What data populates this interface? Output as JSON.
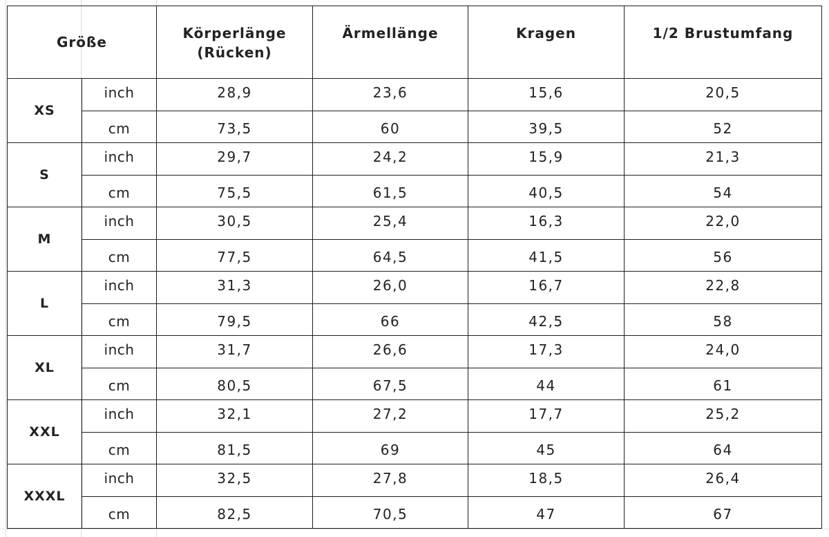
{
  "headers": {
    "size": "Größe",
    "length_line1": "Körperlänge",
    "length_line2": "(Rücken)",
    "sleeve": "Ärmellänge",
    "collar": "Kragen",
    "chest": "1/2 Brustumfang"
  },
  "rows": [
    {
      "size": "XS",
      "inch": {
        "unit": "inch",
        "length": "28,9",
        "sleeve": "23,6",
        "collar": "15,6",
        "chest": "20,5"
      },
      "cm": {
        "unit": "cm",
        "length": "73,5",
        "sleeve": "60",
        "collar": "39,5",
        "chest": "52"
      }
    },
    {
      "size": "S",
      "inch": {
        "unit": "inch",
        "length": "29,7",
        "sleeve": "24,2",
        "collar": "15,9",
        "chest": "21,3"
      },
      "cm": {
        "unit": "cm",
        "length": "75,5",
        "sleeve": "61,5",
        "collar": "40,5",
        "chest": "54"
      }
    },
    {
      "size": "M",
      "inch": {
        "unit": "inch",
        "length": "30,5",
        "sleeve": "25,4",
        "collar": "16,3",
        "chest": "22,0"
      },
      "cm": {
        "unit": "cm",
        "length": "77,5",
        "sleeve": "64,5",
        "collar": "41,5",
        "chest": "56"
      }
    },
    {
      "size": "L",
      "inch": {
        "unit": "inch",
        "length": "31,3",
        "sleeve": "26,0",
        "collar": "16,7",
        "chest": "22,8"
      },
      "cm": {
        "unit": "cm",
        "length": "79,5",
        "sleeve": "66",
        "collar": "42,5",
        "chest": "58"
      }
    },
    {
      "size": "XL",
      "inch": {
        "unit": "inch",
        "length": "31,7",
        "sleeve": "26,6",
        "collar": "17,3",
        "chest": "24,0"
      },
      "cm": {
        "unit": "cm",
        "length": "80,5",
        "sleeve": "67,5",
        "collar": "44",
        "chest": "61"
      }
    },
    {
      "size": "XXL",
      "inch": {
        "unit": "inch",
        "length": "32,1",
        "sleeve": "27,2",
        "collar": "17,7",
        "chest": "25,2"
      },
      "cm": {
        "unit": "cm",
        "length": "81,5",
        "sleeve": "69",
        "collar": "45",
        "chest": "64"
      }
    },
    {
      "size": "XXXL",
      "inch": {
        "unit": "inch",
        "length": "32,5",
        "sleeve": "27,8",
        "collar": "18,5",
        "chest": "26,4"
      },
      "cm": {
        "unit": "cm",
        "length": "82,5",
        "sleeve": "70,5",
        "collar": "47",
        "chest": "67"
      }
    }
  ]
}
